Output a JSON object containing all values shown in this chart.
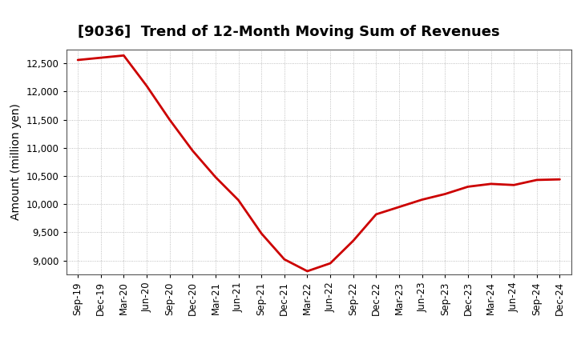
{
  "title": "[9036]  Trend of 12-Month Moving Sum of Revenues",
  "ylabel": "Amount (million yen)",
  "line_color": "#cc0000",
  "line_width": 2.0,
  "background_color": "#ffffff",
  "grid_color": "#999999",
  "x_labels": [
    "Sep-19",
    "Dec-19",
    "Mar-20",
    "Jun-20",
    "Sep-20",
    "Dec-20",
    "Mar-21",
    "Jun-21",
    "Sep-21",
    "Dec-21",
    "Mar-22",
    "Jun-22",
    "Sep-22",
    "Dec-22",
    "Mar-23",
    "Jun-23",
    "Sep-23",
    "Dec-23",
    "Mar-24",
    "Jun-24",
    "Sep-24",
    "Dec-24"
  ],
  "y_values": [
    12560,
    12600,
    12640,
    12100,
    11500,
    10950,
    10480,
    10070,
    9480,
    9020,
    8810,
    8950,
    9350,
    9820,
    9950,
    10080,
    10180,
    10310,
    10360,
    10340,
    10430,
    10440
  ],
  "ylim": [
    8750,
    12750
  ],
  "yticks": [
    9000,
    9500,
    10000,
    10500,
    11000,
    11500,
    12000,
    12500
  ],
  "title_fontsize": 13,
  "label_fontsize": 10,
  "tick_fontsize": 8.5
}
